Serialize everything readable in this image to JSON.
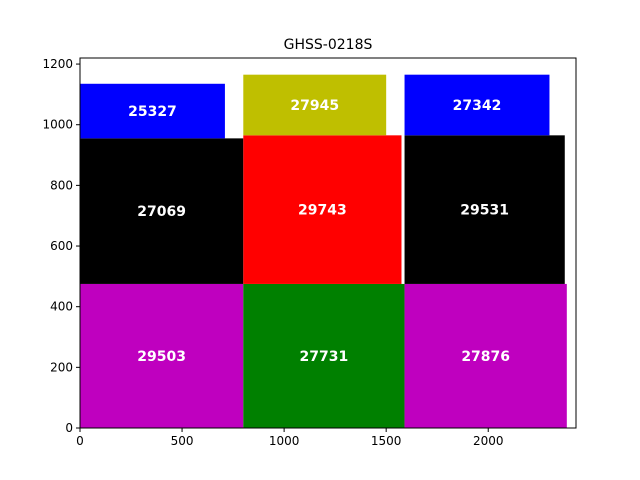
{
  "chart_data": {
    "type": "bar",
    "title": "GHSS-0218S",
    "xlabel": "",
    "ylabel": "",
    "xlim": [
      0,
      2430
    ],
    "ylim": [
      0,
      1220
    ],
    "xticks": [
      0,
      500,
      1000,
      1500,
      2000
    ],
    "yticks": [
      0,
      200,
      400,
      600,
      800,
      1000,
      1200
    ],
    "grid": false,
    "tiles": [
      {
        "label": "29503",
        "x0": 0,
        "x1": 800,
        "y0": 0,
        "y1": 475,
        "color": "#bf00bf"
      },
      {
        "label": "27731",
        "x0": 800,
        "x1": 1590,
        "y0": 0,
        "y1": 475,
        "color": "#008000"
      },
      {
        "label": "27876",
        "x0": 1590,
        "x1": 2385,
        "y0": 0,
        "y1": 475,
        "color": "#bf00bf"
      },
      {
        "label": "27069",
        "x0": 0,
        "x1": 800,
        "y0": 475,
        "y1": 955,
        "color": "#000000"
      },
      {
        "label": "29743",
        "x0": 800,
        "x1": 1575,
        "y0": 475,
        "y1": 965,
        "color": "#ff0000"
      },
      {
        "label": "29531",
        "x0": 1590,
        "x1": 2375,
        "y0": 475,
        "y1": 965,
        "color": "#000000"
      },
      {
        "label": "25327",
        "x0": 0,
        "x1": 710,
        "y0": 955,
        "y1": 1135,
        "color": "#0000ff"
      },
      {
        "label": "27945",
        "x0": 800,
        "x1": 1500,
        "y0": 965,
        "y1": 1165,
        "color": "#bfbf00"
      },
      {
        "label": "27342",
        "x0": 1590,
        "x1": 2300,
        "y0": 965,
        "y1": 1165,
        "color": "#0000ff"
      }
    ]
  }
}
